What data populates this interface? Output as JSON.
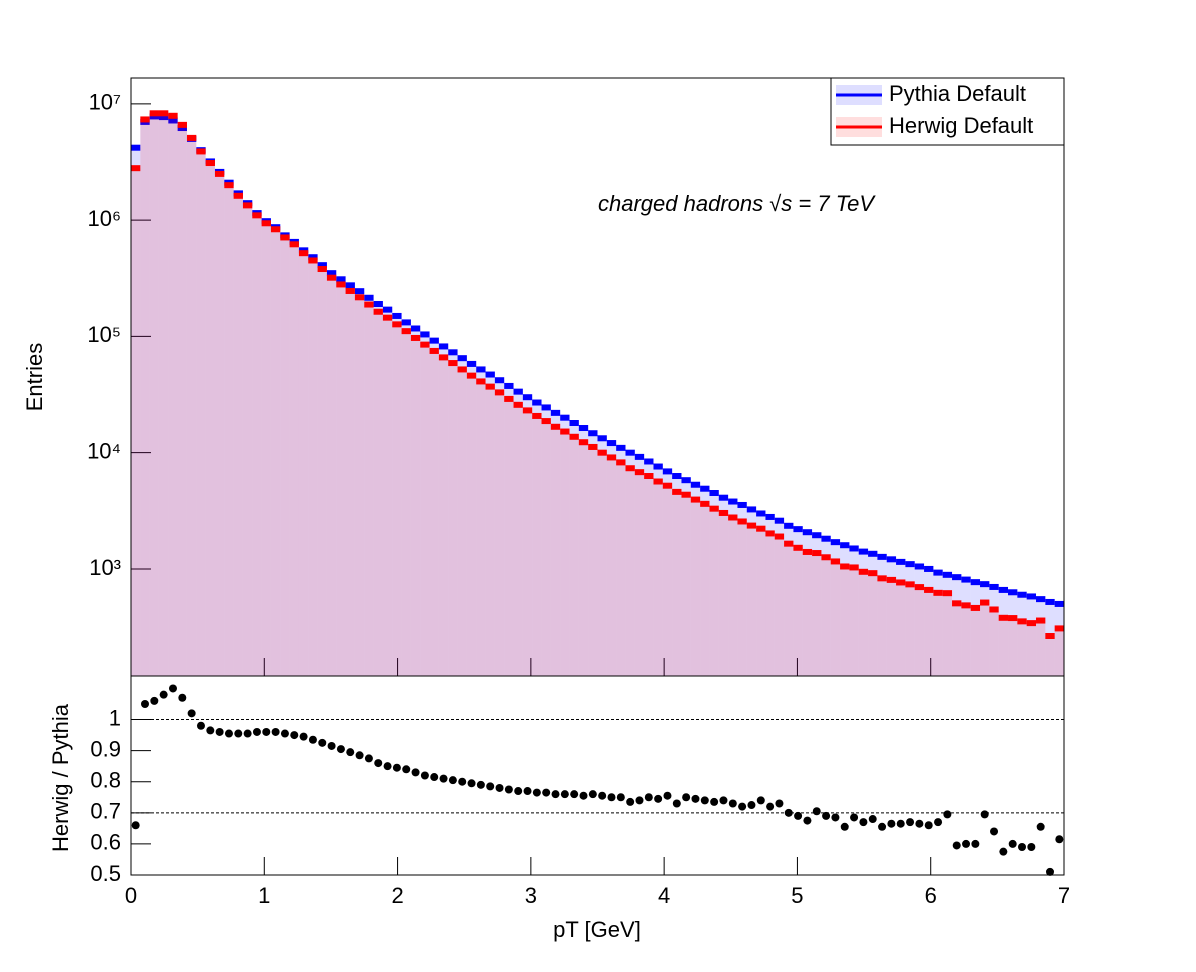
{
  "chart_data": [
    {
      "type": "histogram",
      "log_y": true,
      "ylabel": "Entries",
      "annotation": "charged hadrons   √s  = 7 TeV",
      "legend": "top-right",
      "xlim": [
        0,
        7
      ],
      "xticks": [
        0,
        1,
        2,
        3,
        4,
        5,
        6,
        7
      ],
      "ylim": [
        120,
        16700000
      ],
      "yticks": [
        {
          "value": 1000,
          "label": "10³"
        },
        {
          "value": 10000,
          "label": "10⁴"
        },
        {
          "value": 100000,
          "label": "10⁵"
        },
        {
          "value": 1000000,
          "label": "10⁶"
        },
        {
          "value": 10000000,
          "label": "10⁷"
        }
      ],
      "bins": [
        0,
        0.07,
        0.14,
        0.21,
        0.28,
        0.35,
        0.42,
        0.49,
        0.56,
        0.63,
        0.7,
        0.77,
        0.84,
        0.91,
        0.98,
        1.05,
        1.12,
        1.19,
        1.26,
        1.33,
        1.4,
        1.47,
        1.54,
        1.61,
        1.68,
        1.75,
        1.82,
        1.89,
        1.96,
        2.03,
        2.1,
        2.17,
        2.24,
        2.31,
        2.38,
        2.45,
        2.52,
        2.59,
        2.66,
        2.73,
        2.8,
        2.87,
        2.94,
        3.01,
        3.08,
        3.15,
        3.22,
        3.29,
        3.36,
        3.43,
        3.5,
        3.57,
        3.64,
        3.71,
        3.78,
        3.85,
        3.92,
        3.99,
        4.06,
        4.13,
        4.2,
        4.27,
        4.34,
        4.41,
        4.48,
        4.55,
        4.62,
        4.69,
        4.76,
        4.83,
        4.9,
        4.97,
        5.04,
        5.11,
        5.18,
        5.25,
        5.32,
        5.39,
        5.46,
        5.53,
        5.6,
        5.67,
        5.74,
        5.81,
        5.88,
        5.95,
        6.02,
        6.09,
        6.16,
        6.23,
        6.3,
        6.37,
        6.44,
        6.51,
        6.58,
        6.65,
        6.72,
        6.79,
        6.86,
        6.93,
        7
      ],
      "series": [
        {
          "name": "Pythia Default",
          "color": "#0000ff",
          "values": [
            4200000.0,
            7000000.0,
            7800000.0,
            7700000.0,
            7200000.0,
            6200000.0,
            5000000.0,
            4000000.0,
            3200000.0,
            2600000.0,
            2100000.0,
            1700000.0,
            1400000.0,
            1150000.0,
            980000.0,
            870000.0,
            740000.0,
            650000.0,
            550000.0,
            480000.0,
            410000.0,
            350000.0,
            310000.0,
            275000.0,
            245000.0,
            215000.0,
            190000.0,
            170000.0,
            150000.0,
            132000.0,
            117000.0,
            104000.0,
            92000.0,
            82000.0,
            73000.0,
            65000.0,
            58000.0,
            52000.0,
            47000.0,
            42000.0,
            37500.0,
            33500.0,
            30000.0,
            27000.0,
            24500.0,
            22000.0,
            20000.0,
            18000.0,
            16300.0,
            14700.0,
            13300.0,
            12100.0,
            11000.0,
            10000.0,
            9200,
            8400,
            7600,
            6900,
            6300,
            5800,
            5300,
            4900,
            4500,
            4100,
            3800,
            3550,
            3250,
            3000,
            2800,
            2600,
            2350,
            2200,
            2070,
            1950,
            1820,
            1700,
            1600,
            1500,
            1410,
            1350,
            1270,
            1210,
            1150,
            1100,
            1050,
            1000,
            930,
            890,
            850,
            810,
            770,
            740,
            700,
            660,
            630,
            600,
            580,
            550,
            520,
            500
          ]
        },
        {
          "name": "Herwig Default",
          "color": "#ff0000",
          "values": [
            2800000.0,
            7350000.0,
            8300000.0,
            8300000.0,
            7900000.0,
            6600000.0,
            5100000.0,
            3900000.0,
            3100000.0,
            2500000.0,
            2000000.0,
            1620000.0,
            1340000.0,
            1100000.0,
            940000.0,
            835000.0,
            710000.0,
            620000.0,
            520000.0,
            450000.0,
            380000.0,
            320000.0,
            280000.0,
            246000.0,
            217000.0,
            188000.0,
            163000.0,
            145000.0,
            127000.0,
            111000.0,
            97000.0,
            85000.0,
            75000.0,
            66000.0,
            59000.0,
            52000.0,
            46000.0,
            41000.0,
            37000.0,
            33000.0,
            29000.0,
            25800.0,
            23100.0,
            20700.0,
            18700.0,
            16700.0,
            15200.0,
            13700.0,
            12300.0,
            11200.0,
            10000.0,
            9100,
            8250,
            7350,
            6800,
            6300,
            5650,
            5200,
            4600,
            4350,
            3950,
            3630,
            3300,
            3030,
            2770,
            2560,
            2360,
            2220,
            2020,
            1900,
            1650,
            1520,
            1400,
            1370,
            1260,
            1160,
            1050,
            1030,
            945,
            920,
            830,
            805,
            765,
            737,
            698,
            660,
            623,
            619,
            506,
            486,
            462,
            514,
            448,
            380,
            378,
            354,
            342,
            360,
            265,
            308
          ]
        }
      ]
    },
    {
      "type": "scatter",
      "ylabel": "Herwig / Pythia",
      "xlabel": "pT [GeV]",
      "color": "#000000",
      "xlim": [
        0,
        7
      ],
      "xticks": [
        0,
        1,
        2,
        3,
        4,
        5,
        6,
        7
      ],
      "ylim": [
        0.5,
        1.14
      ],
      "yticks": [
        0.5,
        0.6,
        0.7,
        0.8,
        0.9,
        1
      ],
      "reference_lines": [
        1,
        0.7
      ],
      "x": [
        0.035,
        0.105,
        0.175,
        0.245,
        0.315,
        0.385,
        0.455,
        0.525,
        0.595,
        0.665,
        0.735,
        0.805,
        0.875,
        0.945,
        1.015,
        1.085,
        1.155,
        1.225,
        1.295,
        1.365,
        1.435,
        1.505,
        1.575,
        1.645,
        1.715,
        1.785,
        1.855,
        1.925,
        1.995,
        2.065,
        2.135,
        2.205,
        2.275,
        2.345,
        2.415,
        2.485,
        2.555,
        2.625,
        2.695,
        2.765,
        2.835,
        2.905,
        2.975,
        3.045,
        3.115,
        3.185,
        3.255,
        3.325,
        3.395,
        3.465,
        3.535,
        3.605,
        3.675,
        3.745,
        3.815,
        3.885,
        3.955,
        4.025,
        4.095,
        4.165,
        4.235,
        4.305,
        4.375,
        4.445,
        4.515,
        4.585,
        4.655,
        4.725,
        4.795,
        4.865,
        4.935,
        5.005,
        5.075,
        5.145,
        5.215,
        5.285,
        5.355,
        5.425,
        5.495,
        5.565,
        5.635,
        5.705,
        5.775,
        5.845,
        5.915,
        5.985,
        6.055,
        6.125,
        6.195,
        6.265,
        6.335,
        6.405,
        6.475,
        6.545,
        6.615,
        6.685,
        6.755,
        6.825,
        6.895,
        6.965
      ],
      "values": [
        0.66,
        1.05,
        1.06,
        1.08,
        1.1,
        1.07,
        1.02,
        0.98,
        0.965,
        0.96,
        0.955,
        0.955,
        0.955,
        0.96,
        0.96,
        0.96,
        0.955,
        0.95,
        0.945,
        0.935,
        0.925,
        0.915,
        0.905,
        0.895,
        0.885,
        0.875,
        0.86,
        0.85,
        0.845,
        0.84,
        0.83,
        0.82,
        0.815,
        0.81,
        0.805,
        0.8,
        0.795,
        0.79,
        0.785,
        0.78,
        0.775,
        0.77,
        0.77,
        0.765,
        0.765,
        0.76,
        0.76,
        0.76,
        0.755,
        0.76,
        0.755,
        0.75,
        0.75,
        0.735,
        0.74,
        0.75,
        0.745,
        0.755,
        0.73,
        0.75,
        0.745,
        0.74,
        0.735,
        0.74,
        0.73,
        0.72,
        0.725,
        0.74,
        0.72,
        0.73,
        0.7,
        0.69,
        0.675,
        0.705,
        0.69,
        0.685,
        0.655,
        0.685,
        0.67,
        0.68,
        0.655,
        0.665,
        0.665,
        0.67,
        0.665,
        0.66,
        0.67,
        0.695,
        0.595,
        0.6,
        0.6,
        0.695,
        0.64,
        0.575,
        0.6,
        0.59,
        0.59,
        0.655,
        0.51,
        0.615
      ]
    }
  ]
}
